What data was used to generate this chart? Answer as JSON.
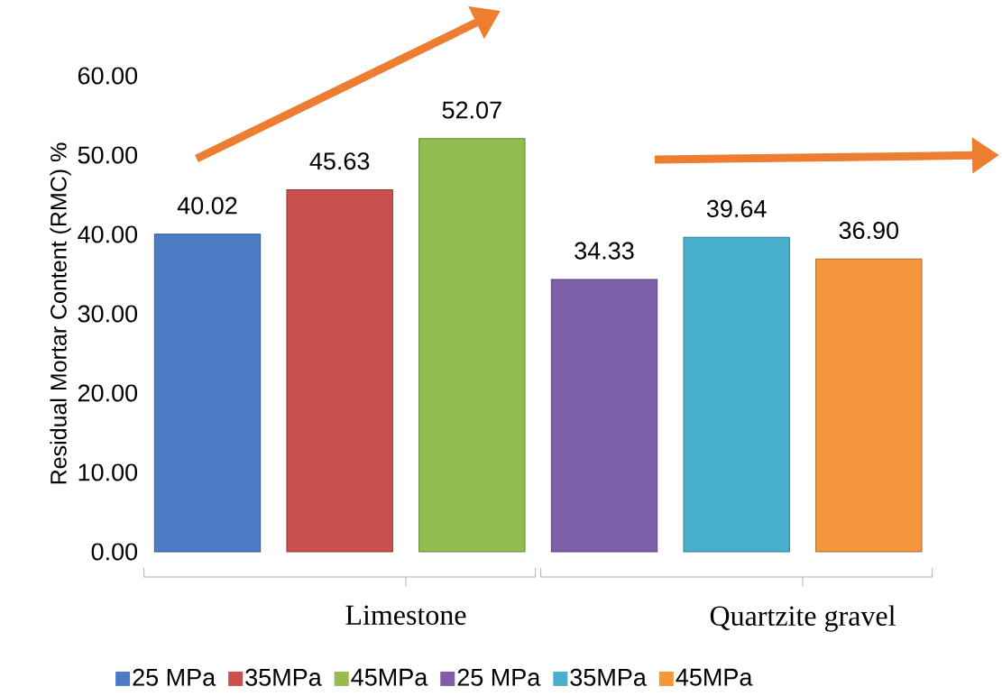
{
  "chart_data": {
    "type": "bar",
    "ylabel": "Residual Mortar Content (RMC) %",
    "categories": [
      "Limestone",
      "Quartzite gravel"
    ],
    "series": [
      {
        "name": "25 MPa",
        "color": "#4a7bc4",
        "values": [
          40.02,
          null
        ],
        "value_labels": [
          "40.02",
          null
        ]
      },
      {
        "name": "35MPa",
        "color": "#c9504d",
        "values": [
          45.63,
          null
        ],
        "value_labels": [
          "45.63",
          null
        ]
      },
      {
        "name": "45MPa",
        "color": "#94bd4f",
        "values": [
          52.07,
          null
        ],
        "value_labels": [
          "52.07",
          null
        ]
      },
      {
        "name": "25 MPa",
        "color": "#7d5ea8",
        "values": [
          null,
          34.33
        ],
        "value_labels": [
          null,
          "34.33"
        ]
      },
      {
        "name": "35MPa",
        "color": "#48b0cc",
        "values": [
          null,
          39.64
        ],
        "value_labels": [
          null,
          "39.64"
        ]
      },
      {
        "name": "45MPa",
        "color": "#f5963c",
        "values": [
          null,
          36.9
        ],
        "value_labels": [
          null,
          "36.90"
        ]
      }
    ],
    "ylim": [
      0,
      60
    ],
    "yticks": [
      {
        "value": 0,
        "label": "0.00"
      },
      {
        "value": 10,
        "label": "10.00"
      },
      {
        "value": 20,
        "label": "20.00"
      },
      {
        "value": 30,
        "label": "30.00"
      },
      {
        "value": 40,
        "label": "40.00"
      },
      {
        "value": 50,
        "label": "50.00"
      },
      {
        "value": 60,
        "label": "60.00"
      }
    ],
    "legend": "bottom"
  }
}
